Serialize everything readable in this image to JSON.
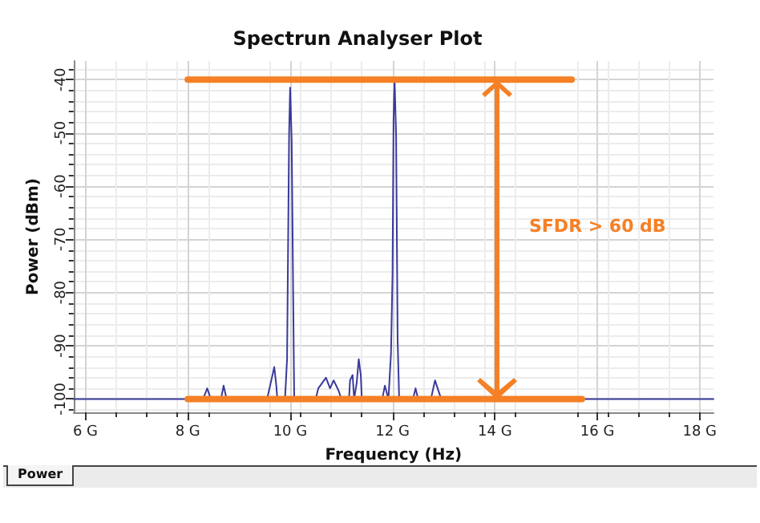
{
  "chart_data": {
    "type": "line",
    "title": "Spectrun Analyser Plot",
    "xlabel": "Frequency (Hz)",
    "ylabel": "Power (dBm)",
    "xlim": [
      5.77,
      18.27
    ],
    "ylim": [
      -102.5,
      -36.5
    ],
    "xticks": [
      {
        "value": 6,
        "label": "6 G"
      },
      {
        "value": 8,
        "label": "8 G"
      },
      {
        "value": 10,
        "label": "10 G"
      },
      {
        "value": 12,
        "label": "12 G"
      },
      {
        "value": 14,
        "label": "14 G"
      },
      {
        "value": 16,
        "label": "16 G"
      },
      {
        "value": 18,
        "label": "18 G"
      }
    ],
    "yticks": [
      -40,
      -50,
      -60,
      -70,
      -80,
      -90,
      -100
    ],
    "grid": true,
    "marker": "none",
    "line_style": "solid",
    "series": [
      {
        "color": "#3a3a9c",
        "x": [
          5.77,
          8.3,
          8.38,
          8.45,
          8.65,
          8.7,
          8.76,
          9.55,
          9.69,
          9.73,
          9.75,
          9.9,
          9.94,
          9.98,
          10.0,
          10.03,
          10.07,
          10.08,
          10.5,
          10.55,
          10.7,
          10.78,
          10.85,
          10.95,
          11.0,
          11.15,
          11.17,
          11.22,
          11.25,
          11.3,
          11.34,
          11.38,
          11.4,
          11.8,
          11.85,
          11.92,
          11.97,
          12.0,
          12.02,
          12.04,
          12.07,
          12.1,
          12.13,
          12.4,
          12.45,
          12.5,
          12.75,
          12.83,
          12.95,
          18.27
        ],
        "values": [
          -100,
          -100,
          -98,
          -100,
          -100,
          -97.5,
          -100,
          -100,
          -94,
          -97.5,
          -100,
          -100,
          -92.5,
          -50,
          -41.5,
          -51.5,
          -91,
          -100,
          -100,
          -98,
          -96,
          -98,
          -96.5,
          -98.5,
          -100,
          -100,
          -96.5,
          -95.5,
          -100,
          -97,
          -92.5,
          -95.5,
          -100,
          -100,
          -97.5,
          -100,
          -91.5,
          -76.5,
          -47.5,
          -40,
          -50.5,
          -89,
          -100,
          -100,
          -98,
          -100,
          -100,
          -96.5,
          -100,
          -100
        ]
      },
      {
        "color": "#f58025",
        "x": [
          8,
          15.5
        ],
        "values": [
          -40,
          -40
        ]
      },
      {
        "color": "#f58025",
        "x": [
          8,
          15.7
        ],
        "values": [
          -100,
          -100
        ]
      }
    ],
    "annotations": [
      "SFDR > 60 dB",
      "Power"
    ]
  }
}
